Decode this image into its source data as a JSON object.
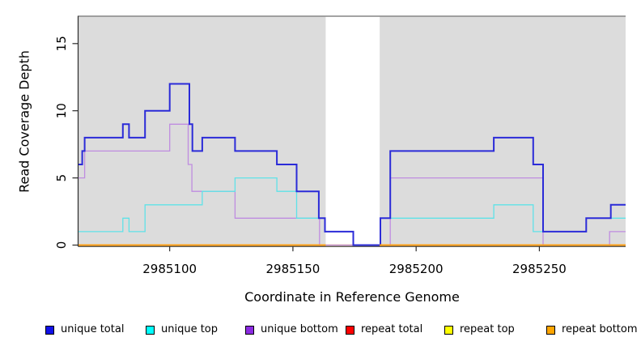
{
  "chart_data": {
    "type": "line",
    "line_style": "step",
    "title": "",
    "xlabel": "Coordinate in Reference Genome",
    "ylabel": "Read Coverage Depth",
    "x_domain": [
      2985063,
      2985285
    ],
    "y_domain": [
      0,
      17
    ],
    "grid": false,
    "x_ticks": [
      {
        "value": 2985100,
        "label": "2985100"
      },
      {
        "value": 2985150,
        "label": "2985150"
      },
      {
        "value": 2985200,
        "label": "2985200"
      },
      {
        "value": 2985250,
        "label": "2985250"
      }
    ],
    "y_ticks": [
      {
        "value": 0,
        "label": "0"
      },
      {
        "value": 5,
        "label": "5"
      },
      {
        "value": 10,
        "label": "10"
      },
      {
        "value": 15,
        "label": "15"
      }
    ],
    "background": {
      "shaded_regions": [
        [
          2985063,
          2985163.3
        ],
        [
          2985185.2,
          2985285
        ]
      ],
      "region_color": "#dcdcdc",
      "gap_color": "#ffffff",
      "top_border_color": "#858585"
    },
    "draw_order": [
      "repeat total",
      "repeat top",
      "unique bottom",
      "unique top",
      "unique total",
      "repeat bottom"
    ],
    "series": [
      {
        "name": "unique total",
        "color": "#2b2bd8",
        "line_width": 2,
        "end": 2985285,
        "steps": [
          [
            2985063,
            6
          ],
          [
            2985064.5,
            7
          ],
          [
            2985065.5,
            8
          ],
          [
            2985081,
            9
          ],
          [
            2985083.5,
            8
          ],
          [
            2985090,
            10
          ],
          [
            2985100,
            12
          ],
          [
            2985108,
            9
          ],
          [
            2985109.2,
            7
          ],
          [
            2985113.2,
            8
          ],
          [
            2985126.5,
            7
          ],
          [
            2985143.5,
            6
          ],
          [
            2985151.5,
            4
          ],
          [
            2985160.5,
            2
          ],
          [
            2985163,
            1
          ],
          [
            2985174.5,
            0
          ],
          [
            2985185.5,
            2
          ],
          [
            2985189.5,
            7
          ],
          [
            2985231.5,
            8
          ],
          [
            2985247.5,
            6
          ],
          [
            2985251.5,
            1
          ],
          [
            2985269,
            2
          ],
          [
            2985279,
            3
          ]
        ]
      },
      {
        "name": "unique top",
        "color": "#5fe2e8",
        "line_width": 1.3,
        "end": 2985285,
        "steps": [
          [
            2985063,
            1
          ],
          [
            2985081,
            2
          ],
          [
            2985083.5,
            1
          ],
          [
            2985090,
            3
          ],
          [
            2985113.2,
            4
          ],
          [
            2985126.5,
            5
          ],
          [
            2985143.5,
            4
          ],
          [
            2985151.5,
            2
          ],
          [
            2985163,
            1
          ],
          [
            2985174.5,
            0
          ],
          [
            2985185.5,
            2
          ],
          [
            2985231.5,
            3
          ],
          [
            2985247.5,
            1
          ],
          [
            2985269,
            2
          ]
        ]
      },
      {
        "name": "unique bottom",
        "color": "#bf8ce0",
        "line_width": 1.3,
        "end": 2985285,
        "steps": [
          [
            2985063,
            5
          ],
          [
            2985065.5,
            7
          ],
          [
            2985100,
            9
          ],
          [
            2985107.5,
            6
          ],
          [
            2985109,
            4
          ],
          [
            2985126.5,
            2
          ],
          [
            2985160.8,
            0
          ],
          [
            2985189.5,
            5
          ],
          [
            2985251.5,
            0
          ],
          [
            2985278.5,
            1
          ]
        ]
      },
      {
        "name": "repeat total",
        "color": "#e03838",
        "line_width": 1.3,
        "end": 2985285,
        "steps": [
          [
            2985063,
            0
          ]
        ]
      },
      {
        "name": "repeat top",
        "color": "#f2f200",
        "line_width": 1.3,
        "end": 2985285,
        "steps": [
          [
            2985063,
            0
          ]
        ]
      },
      {
        "name": "repeat bottom",
        "color": "#ff9f14",
        "line_width": 2,
        "spans": [
          {
            "from": 2985063,
            "to": 2985163.3,
            "value": 0
          },
          {
            "from": 2985185.2,
            "to": 2985285,
            "value": 0
          }
        ]
      }
    ]
  },
  "legend": {
    "items": [
      {
        "label": "unique total",
        "color": "#1111e8"
      },
      {
        "label": "unique top",
        "color": "#00ffff"
      },
      {
        "label": "unique bottom",
        "color": "#8b2be2"
      },
      {
        "label": "repeat total",
        "color": "#ff0000"
      },
      {
        "label": "repeat top",
        "color": "#ffff00"
      },
      {
        "label": "repeat bottom",
        "color": "#ffa500"
      }
    ]
  }
}
